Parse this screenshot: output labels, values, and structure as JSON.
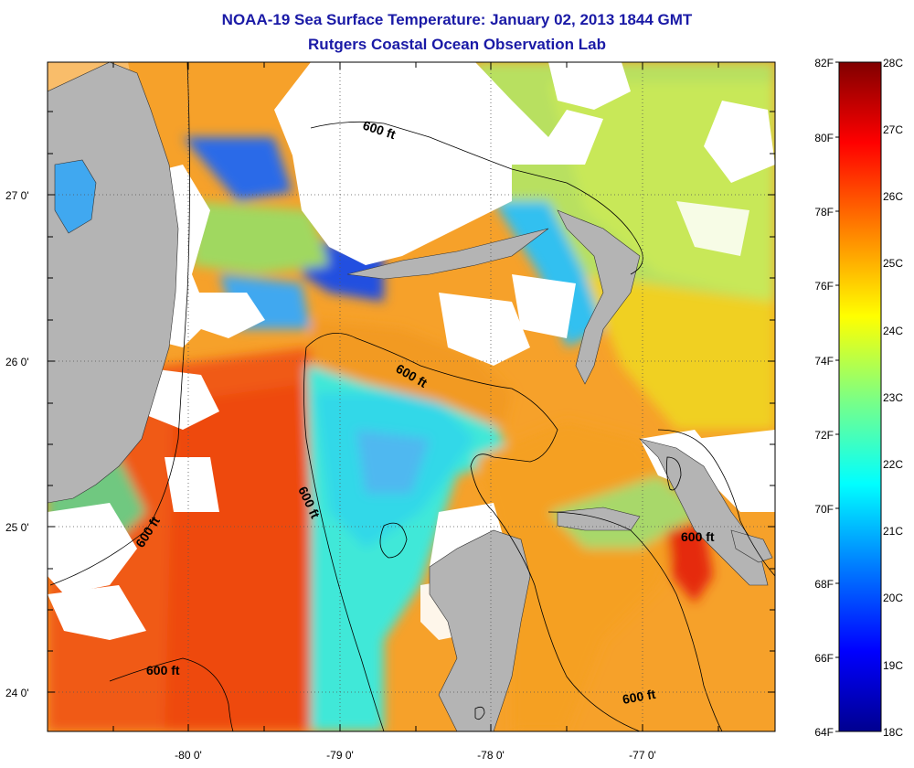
{
  "title": "NOAA-19 Sea Surface Temperature:  January 02, 2013 1844 GMT",
  "subtitle": "Rutgers Coastal Ocean Observation Lab",
  "map": {
    "lat_labels": [
      "27 0'",
      "26 0'",
      "25 0'",
      "24 0'"
    ],
    "lon_labels": [
      "-80 0'",
      "-79 0'",
      "-78 0'",
      "-77 0'"
    ],
    "contour_label": "600 ft",
    "colors": {
      "land": "#b4b4b4",
      "cloud": "#ffffff"
    }
  },
  "colorbar": {
    "fahrenheit_labels": [
      "82F",
      "80F",
      "78F",
      "76F",
      "74F",
      "72F",
      "70F",
      "68F",
      "66F",
      "64F"
    ],
    "celsius_labels": [
      "28C",
      "27C",
      "26C",
      "25C",
      "24C",
      "23C",
      "22C",
      "21C",
      "20C",
      "19C",
      "18C"
    ],
    "colormap": [
      "#00008f",
      "#0000ff",
      "#0080ff",
      "#00ffff",
      "#80ff80",
      "#ffff00",
      "#ff8000",
      "#ff0000",
      "#800000"
    ]
  }
}
